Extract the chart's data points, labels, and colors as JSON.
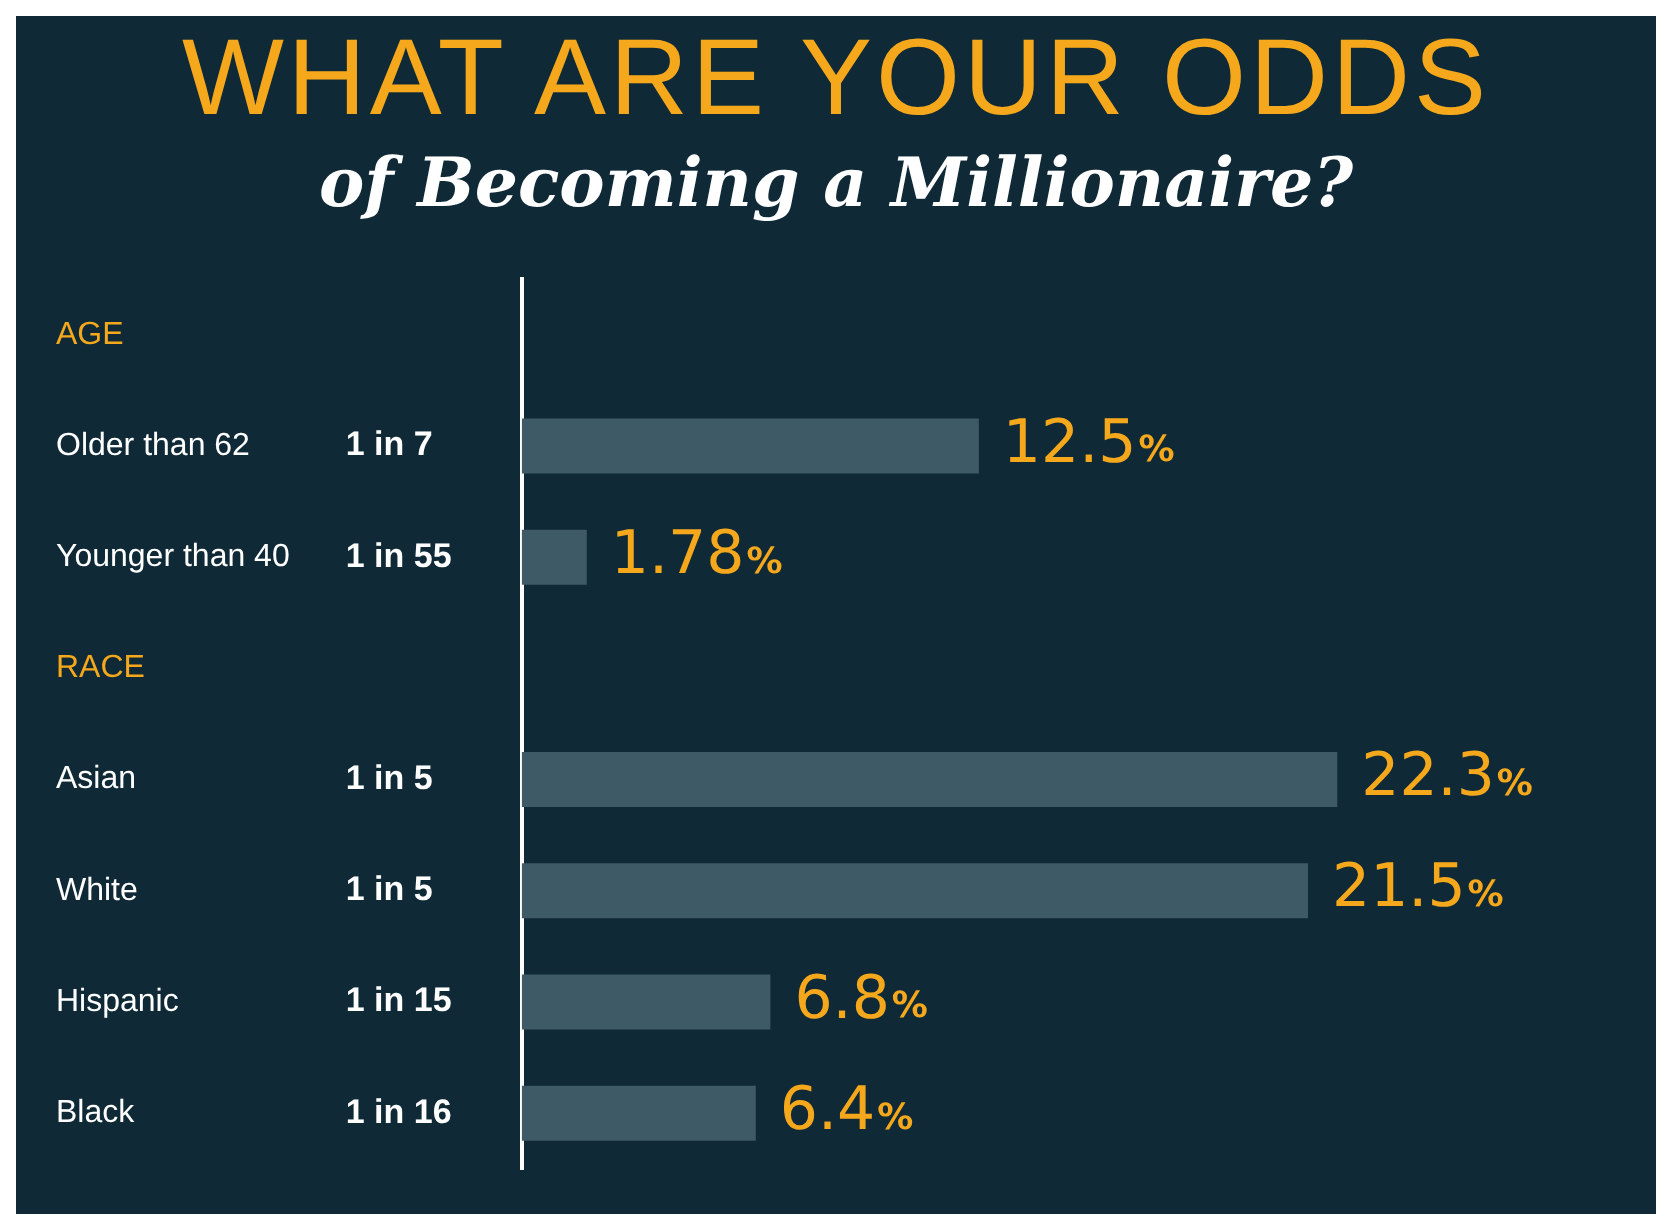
{
  "chart_data": {
    "type": "bar",
    "orientation": "horizontal",
    "title": "WHAT ARE YOUR ODDS",
    "subtitle": "of Becoming a Millionaire?",
    "categories": [
      "AGE",
      "Older than 62",
      "Younger than 40",
      "RACE",
      "Asian",
      "White",
      "Hispanic",
      "Black"
    ],
    "values": [
      null,
      12.5,
      1.78,
      null,
      22.3,
      21.5,
      6.8,
      6.4
    ],
    "value_labels": [
      null,
      "12.5%",
      "1.78%",
      null,
      "22.3%",
      "21.5%",
      "6.8%",
      "6.4%"
    ],
    "color": "#3e5a66",
    "annotations": [
      "1 in 7",
      "1 in 55",
      "1 in 5",
      "1 in 5",
      "1 in 15",
      "1 in 16"
    ],
    "tick_labels": "y",
    "grid": false,
    "legend": false
  }
}
